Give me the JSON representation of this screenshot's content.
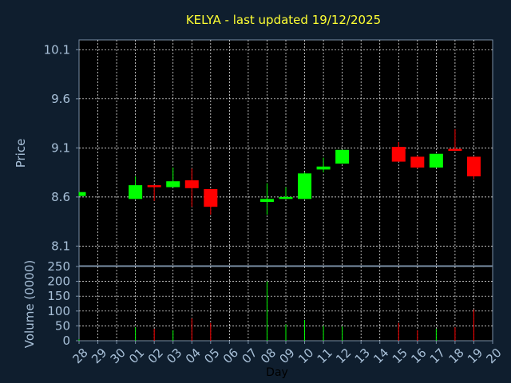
{
  "chart_data": [
    {
      "type": "candlestick",
      "title": "KELYA - last updated 19/12/2025",
      "ylabel": "Price",
      "ylim": [
        7.9,
        10.2
      ],
      "yticks": [
        "10.1",
        "9.6",
        "9.1",
        "8.6",
        "8.1"
      ],
      "ytick_values": [
        10.1,
        9.6,
        9.1,
        8.6,
        8.1
      ],
      "grid": true,
      "colors": {
        "up": "#00ff00",
        "down": "#ff0000"
      },
      "candles": [
        {
          "day": "28",
          "open": 8.61,
          "high": 8.65,
          "low": 8.61,
          "close": 8.65
        },
        {
          "day": "01",
          "open": 8.58,
          "high": 8.81,
          "low": 8.58,
          "close": 8.72
        },
        {
          "day": "02",
          "open": 8.72,
          "high": 8.72,
          "low": 8.56,
          "close": 8.7
        },
        {
          "day": "03",
          "open": 8.7,
          "high": 8.9,
          "low": 8.7,
          "close": 8.76
        },
        {
          "day": "04",
          "open": 8.77,
          "high": 8.89,
          "low": 8.5,
          "close": 8.69
        },
        {
          "day": "05",
          "open": 8.68,
          "high": 8.68,
          "low": 8.42,
          "close": 8.5
        },
        {
          "day": "08",
          "open": 8.55,
          "high": 8.74,
          "low": 8.42,
          "close": 8.58
        },
        {
          "day": "09",
          "open": 8.58,
          "high": 8.7,
          "low": 8.58,
          "close": 8.6
        },
        {
          "day": "10",
          "open": 8.58,
          "high": 8.85,
          "low": 8.58,
          "close": 8.84
        },
        {
          "day": "11",
          "open": 8.88,
          "high": 9.0,
          "low": 8.85,
          "close": 8.91
        },
        {
          "day": "12",
          "open": 8.94,
          "high": 9.08,
          "low": 8.94,
          "close": 9.08
        },
        {
          "day": "15",
          "open": 9.11,
          "high": 9.16,
          "low": 8.96,
          "close": 8.96
        },
        {
          "day": "16",
          "open": 9.01,
          "high": 9.02,
          "low": 8.89,
          "close": 8.9
        },
        {
          "day": "17",
          "open": 8.9,
          "high": 9.04,
          "low": 8.9,
          "close": 9.04
        },
        {
          "day": "18",
          "open": 9.09,
          "high": 9.29,
          "low": 9.07,
          "close": 9.07
        },
        {
          "day": "19",
          "open": 9.01,
          "high": 9.01,
          "low": 8.78,
          "close": 8.81
        }
      ]
    },
    {
      "type": "bar",
      "ylabel": "Volume (0000)",
      "xlabel": "Day",
      "ylim": [
        0,
        250
      ],
      "yticks": [
        "250",
        "200",
        "150",
        "100",
        "50",
        "0"
      ],
      "ytick_values": [
        250,
        200,
        150,
        100,
        50,
        0
      ],
      "categories": [
        "28",
        "29",
        "30",
        "01",
        "02",
        "03",
        "04",
        "05",
        "06",
        "07",
        "08",
        "09",
        "10",
        "11",
        "12",
        "13",
        "14",
        "15",
        "16",
        "17",
        "18",
        "19",
        "20"
      ],
      "values": [
        5,
        0,
        0,
        45,
        40,
        35,
        75,
        60,
        0,
        0,
        200,
        55,
        70,
        50,
        48,
        0,
        0,
        60,
        35,
        40,
        45,
        105,
        0
      ],
      "bar_colors": [
        "#00ff00",
        null,
        null,
        "#00ff00",
        "#ff0000",
        "#00ff00",
        "#ff0000",
        "#ff0000",
        null,
        null,
        "#00ff00",
        "#00ff00",
        "#00ff00",
        "#00ff00",
        "#00ff00",
        null,
        null,
        "#ff0000",
        "#ff0000",
        "#00ff00",
        "#ff0000",
        "#ff0000",
        null
      ]
    }
  ]
}
